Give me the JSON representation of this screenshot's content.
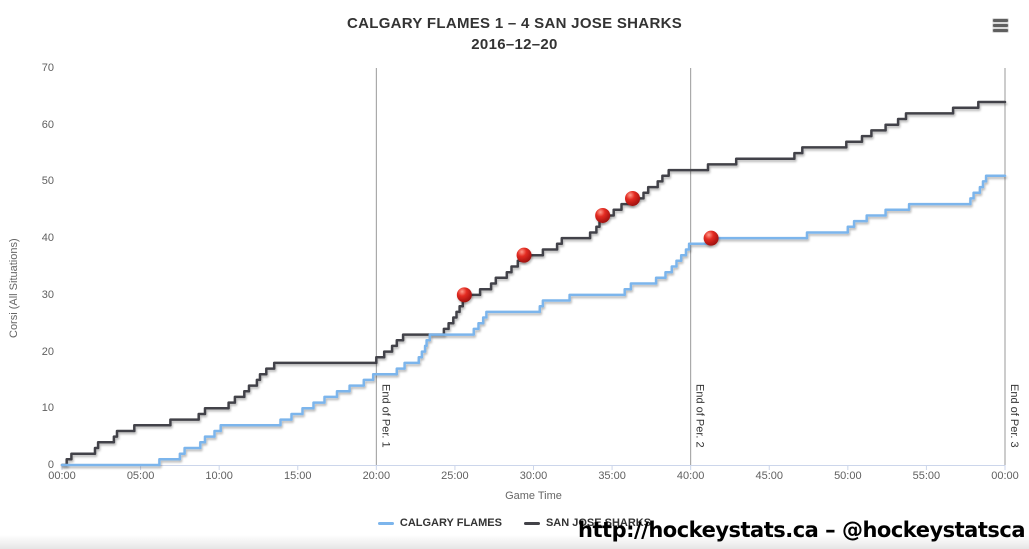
{
  "header": {
    "title": "CALGARY FLAMES 1 – 4 SAN JOSE SHARKS",
    "subtitle": "2016–12–20"
  },
  "menu_icon": "hamburger-export-menu-icon",
  "watermark": "http://hockeystats.ca – @hockeystatsca",
  "colors": {
    "flames": "#7cb5ec",
    "sharks": "#434348",
    "goal_marker": "#e02020",
    "axis_line": "#ccd6eb",
    "tick_label": "#606060",
    "period_line": "#999999"
  },
  "legend": {
    "items": [
      {
        "label": "CALGARY FLAMES",
        "color": "#7cb5ec"
      },
      {
        "label": "SAN JOSE SHARKS",
        "color": "#434348"
      }
    ]
  },
  "chart_data": {
    "type": "line",
    "step": true,
    "title": "CALGARY FLAMES 1 – 4 SAN JOSE SHARKS",
    "subtitle": "2016–12–20",
    "xlabel": "Game Time",
    "ylabel": "Corsi (All Situations)",
    "xlim_minutes": [
      0,
      60
    ],
    "ylim": [
      0,
      70
    ],
    "grid": false,
    "legend_position": "bottom-center",
    "x_tick_minutes": [
      0,
      5,
      10,
      15,
      20,
      25,
      30,
      35,
      40,
      45,
      50,
      55,
      60
    ],
    "x_tick_labels": [
      "00:00",
      "05:00",
      "10:00",
      "15:00",
      "20:00",
      "25:00",
      "30:00",
      "35:00",
      "40:00",
      "45:00",
      "50:00",
      "55:00",
      "00:00"
    ],
    "y_ticks": [
      0,
      10,
      20,
      30,
      40,
      50,
      60,
      70
    ],
    "period_lines": [
      {
        "t": 20,
        "label": "End of Per. 1"
      },
      {
        "t": 40,
        "label": "End of Per. 2"
      },
      {
        "t": 60,
        "label": "End of Per. 3"
      }
    ],
    "series": [
      {
        "name": "SAN JOSE SHARKS",
        "color": "#434348",
        "final_value": 64,
        "points": [
          [
            0,
            0
          ],
          [
            0.3,
            1
          ],
          [
            0.6,
            2
          ],
          [
            2.1,
            3
          ],
          [
            2.3,
            4
          ],
          [
            3.3,
            5
          ],
          [
            3.5,
            6
          ],
          [
            4.6,
            7
          ],
          [
            6.9,
            8
          ],
          [
            8.7,
            9
          ],
          [
            9.1,
            10
          ],
          [
            10.6,
            11
          ],
          [
            11.0,
            12
          ],
          [
            11.6,
            13
          ],
          [
            11.9,
            14
          ],
          [
            12.4,
            15
          ],
          [
            12.6,
            16
          ],
          [
            13.0,
            17
          ],
          [
            13.5,
            18
          ],
          [
            20.0,
            19
          ],
          [
            20.5,
            20
          ],
          [
            21.0,
            21
          ],
          [
            21.3,
            22
          ],
          [
            21.7,
            23
          ],
          [
            24.3,
            24
          ],
          [
            24.6,
            25
          ],
          [
            24.9,
            26
          ],
          [
            25.1,
            27
          ],
          [
            25.3,
            28
          ],
          [
            25.5,
            29
          ],
          [
            25.6,
            30
          ],
          [
            26.6,
            31
          ],
          [
            27.3,
            32
          ],
          [
            27.6,
            33
          ],
          [
            28.3,
            34
          ],
          [
            28.6,
            35
          ],
          [
            29.0,
            36
          ],
          [
            29.4,
            37
          ],
          [
            30.6,
            38
          ],
          [
            31.5,
            39
          ],
          [
            31.8,
            40
          ],
          [
            33.6,
            41
          ],
          [
            34.0,
            42
          ],
          [
            34.2,
            43
          ],
          [
            34.4,
            44
          ],
          [
            35.1,
            45
          ],
          [
            35.6,
            46
          ],
          [
            36.3,
            47
          ],
          [
            37.0,
            48
          ],
          [
            37.3,
            49
          ],
          [
            37.9,
            50
          ],
          [
            38.2,
            51
          ],
          [
            38.6,
            52
          ],
          [
            41.1,
            53
          ],
          [
            42.9,
            54
          ],
          [
            46.6,
            55
          ],
          [
            47.1,
            56
          ],
          [
            49.9,
            57
          ],
          [
            50.9,
            58
          ],
          [
            51.5,
            59
          ],
          [
            52.4,
            60
          ],
          [
            53.2,
            61
          ],
          [
            53.7,
            62
          ],
          [
            56.7,
            63
          ],
          [
            58.3,
            64
          ]
        ]
      },
      {
        "name": "CALGARY FLAMES",
        "color": "#7cb5ec",
        "final_value": 51,
        "points": [
          [
            0,
            0
          ],
          [
            6.2,
            1
          ],
          [
            7.5,
            2
          ],
          [
            7.8,
            3
          ],
          [
            8.8,
            4
          ],
          [
            9.1,
            5
          ],
          [
            9.7,
            6
          ],
          [
            10.1,
            7
          ],
          [
            13.9,
            8
          ],
          [
            14.6,
            9
          ],
          [
            15.3,
            10
          ],
          [
            16.0,
            11
          ],
          [
            16.7,
            12
          ],
          [
            17.5,
            13
          ],
          [
            18.3,
            14
          ],
          [
            19.2,
            15
          ],
          [
            19.8,
            16
          ],
          [
            21.3,
            17
          ],
          [
            21.8,
            18
          ],
          [
            22.7,
            19
          ],
          [
            22.9,
            20
          ],
          [
            23.1,
            21
          ],
          [
            23.2,
            22
          ],
          [
            23.4,
            23
          ],
          [
            26.2,
            24
          ],
          [
            26.5,
            25
          ],
          [
            26.8,
            26
          ],
          [
            27.0,
            27
          ],
          [
            30.4,
            28
          ],
          [
            30.6,
            29
          ],
          [
            32.3,
            30
          ],
          [
            35.8,
            31
          ],
          [
            36.2,
            32
          ],
          [
            37.8,
            33
          ],
          [
            38.4,
            34
          ],
          [
            38.8,
            35
          ],
          [
            39.1,
            36
          ],
          [
            39.4,
            37
          ],
          [
            39.7,
            38
          ],
          [
            39.9,
            39
          ],
          [
            41.2,
            40
          ],
          [
            47.4,
            41
          ],
          [
            50.0,
            42
          ],
          [
            50.4,
            43
          ],
          [
            51.2,
            44
          ],
          [
            52.4,
            45
          ],
          [
            53.9,
            46
          ],
          [
            57.8,
            47
          ],
          [
            58.0,
            48
          ],
          [
            58.4,
            49
          ],
          [
            58.6,
            50
          ],
          [
            58.8,
            51
          ]
        ]
      }
    ],
    "goals": [
      {
        "t": 25.6,
        "v": 30,
        "team": "SAN JOSE SHARKS"
      },
      {
        "t": 29.4,
        "v": 37,
        "team": "SAN JOSE SHARKS"
      },
      {
        "t": 34.4,
        "v": 44,
        "team": "SAN JOSE SHARKS"
      },
      {
        "t": 36.3,
        "v": 47,
        "team": "SAN JOSE SHARKS"
      },
      {
        "t": 41.3,
        "v": 40,
        "team": "CALGARY FLAMES"
      }
    ]
  }
}
